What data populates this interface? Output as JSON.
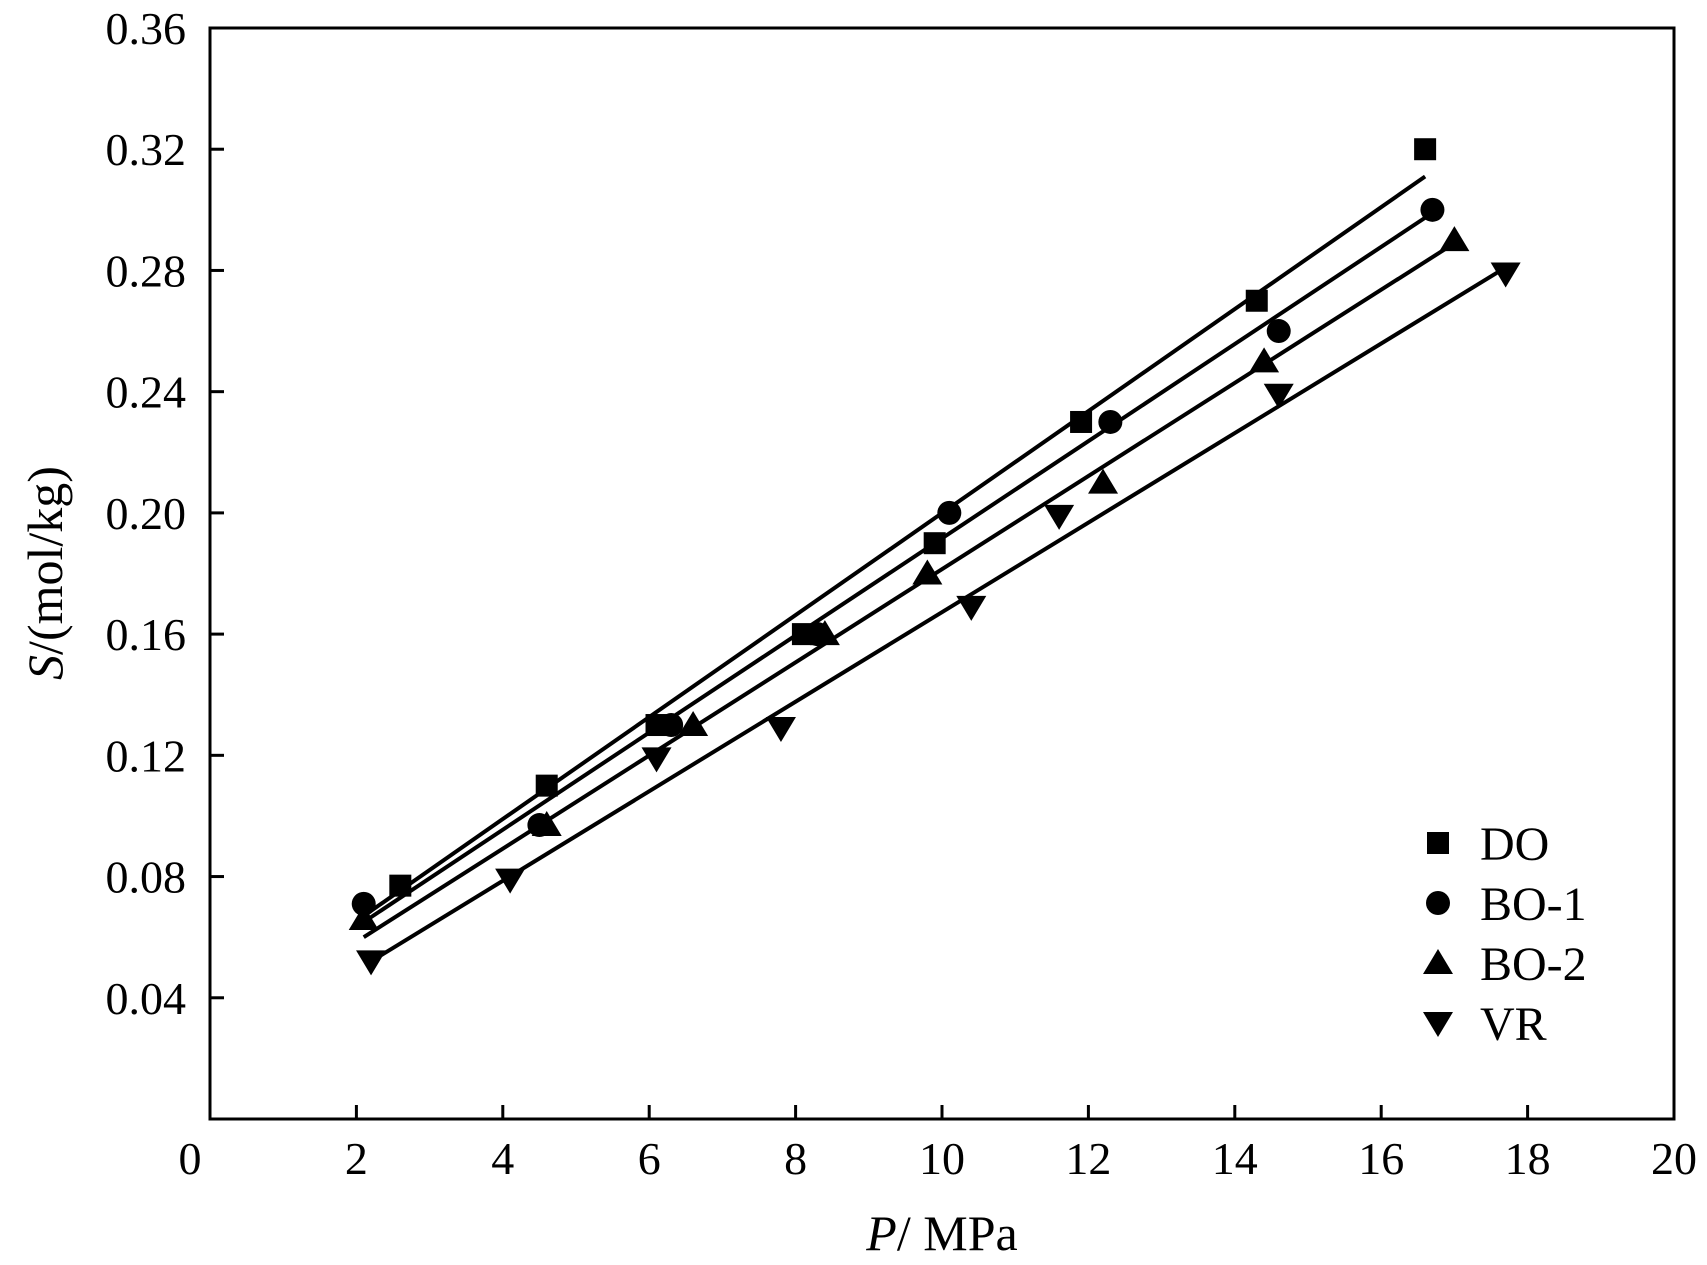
{
  "chart_data": {
    "type": "scatter",
    "xlabel": {
      "symbol": "P",
      "unit": "/ MPa"
    },
    "ylabel": {
      "symbol": "S",
      "unit": "/(mol/kg)"
    },
    "xlim": [
      0,
      20
    ],
    "ylim": [
      0,
      0.36
    ],
    "xticks": [
      "0",
      "2",
      "4",
      "6",
      "8",
      "10",
      "12",
      "14",
      "16",
      "18",
      "20"
    ],
    "yticks": [
      "0.04",
      "0.08",
      "0.12",
      "0.16",
      "0.20",
      "0.24",
      "0.28",
      "0.32",
      "0.36"
    ],
    "legend_position": "bottom-right",
    "grid": false,
    "series": [
      {
        "name": "DO",
        "marker": "square",
        "x": [
          2.6,
          4.6,
          6.1,
          8.1,
          9.9,
          11.9,
          14.3,
          16.6
        ],
        "y": [
          0.077,
          0.11,
          0.13,
          0.16,
          0.19,
          0.23,
          0.27,
          0.32
        ],
        "fit": [
          [
            2.1,
            0.067
          ],
          [
            16.6,
            0.311
          ]
        ]
      },
      {
        "name": "BO-1",
        "marker": "circle",
        "x": [
          2.1,
          4.5,
          6.3,
          8.3,
          10.1,
          12.3,
          14.6,
          16.7
        ],
        "y": [
          0.071,
          0.097,
          0.13,
          0.16,
          0.2,
          0.23,
          0.26,
          0.3
        ],
        "fit": [
          [
            2.1,
            0.065
          ],
          [
            16.7,
            0.299
          ]
        ]
      },
      {
        "name": "BO-2",
        "marker": "triangle-up",
        "x": [
          2.1,
          4.6,
          6.6,
          8.4,
          9.8,
          12.2,
          14.4,
          17.0
        ],
        "y": [
          0.066,
          0.097,
          0.13,
          0.16,
          0.18,
          0.21,
          0.25,
          0.29
        ],
        "fit": [
          [
            2.1,
            0.06
          ],
          [
            17.0,
            0.289
          ]
        ]
      },
      {
        "name": "VR",
        "marker": "triangle-down",
        "x": [
          2.2,
          4.1,
          6.1,
          7.8,
          10.4,
          11.6,
          14.6,
          17.7
        ],
        "y": [
          0.052,
          0.079,
          0.119,
          0.129,
          0.169,
          0.199,
          0.239,
          0.279
        ],
        "fit": [
          [
            2.2,
            0.052
          ],
          [
            17.7,
            0.281
          ]
        ]
      }
    ]
  }
}
